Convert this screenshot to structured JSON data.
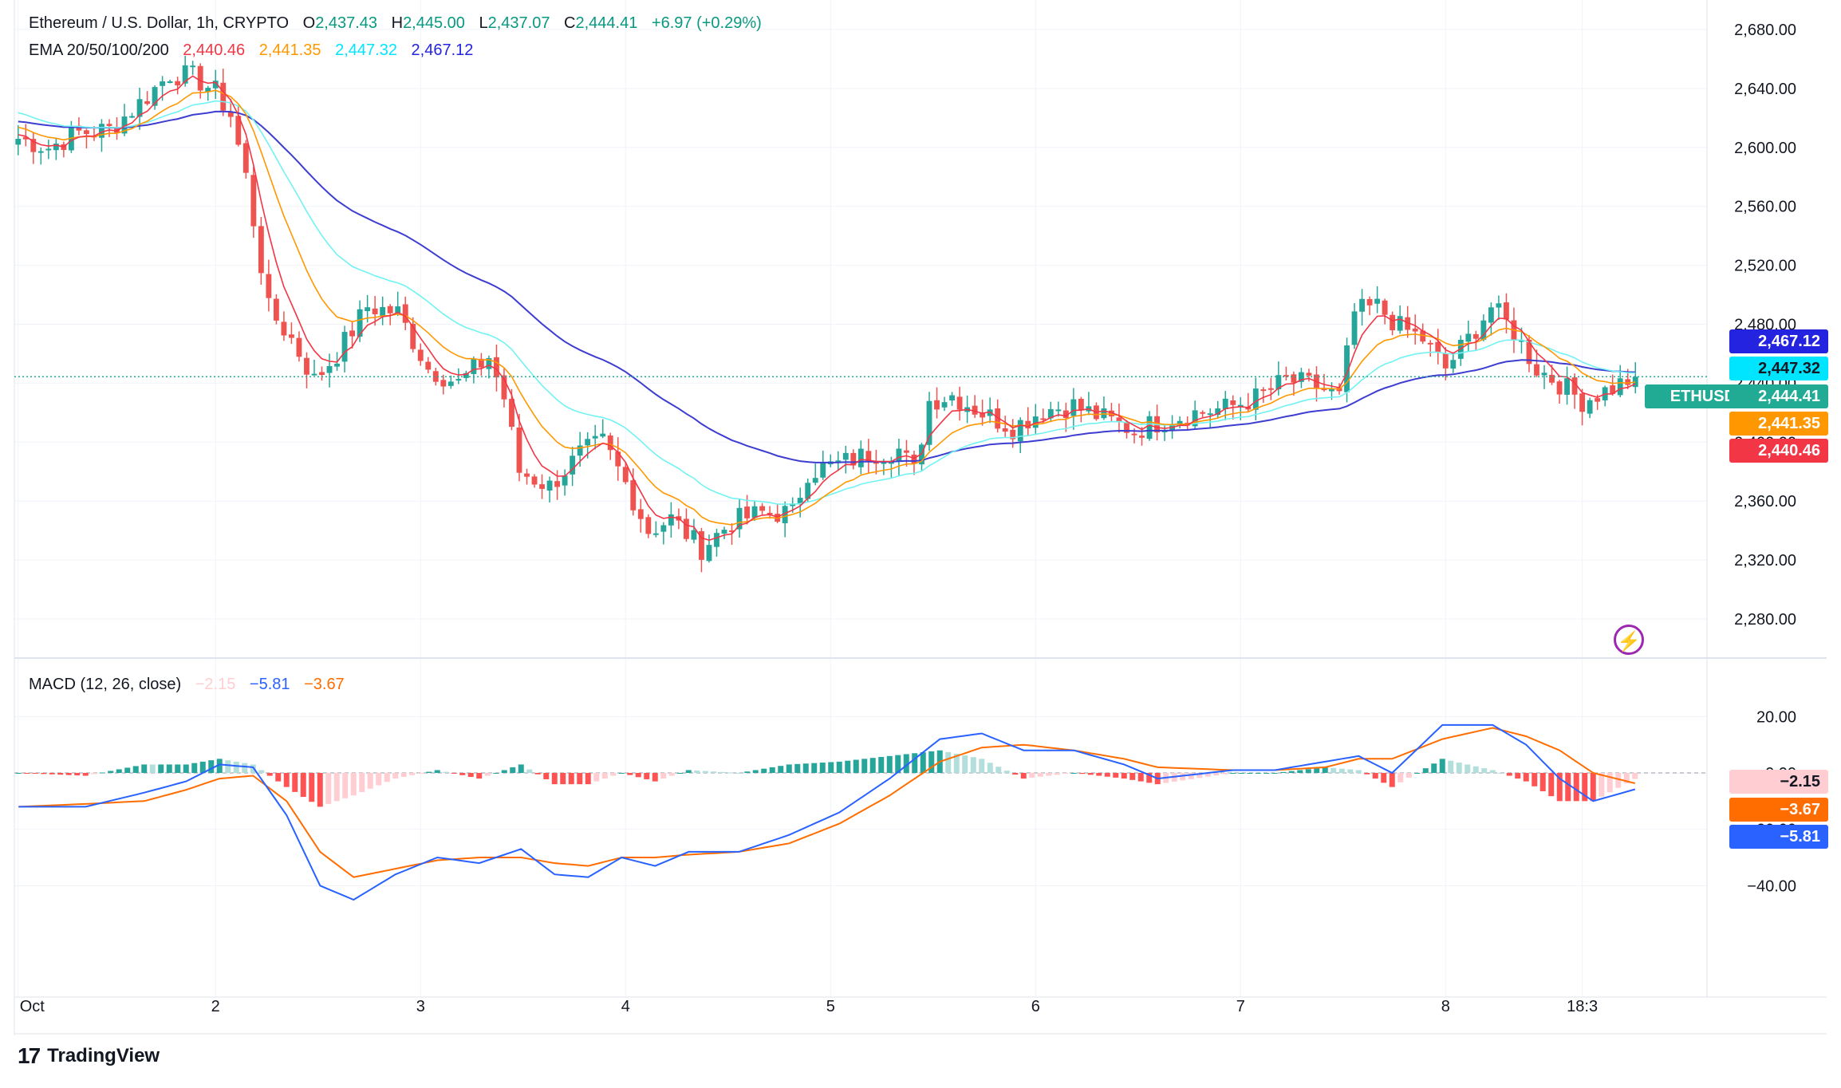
{
  "symbol": {
    "name": "Ethereum / U.S. Dollar, 1h, CRYPTO",
    "open_label": "O",
    "open": "2,437.43",
    "high_label": "H",
    "high": "2,445.00",
    "low_label": "L",
    "low": "2,437.07",
    "close_label": "C",
    "close": "2,444.41",
    "change": "+6.97 (+0.29%)"
  },
  "ema_legend": {
    "label": "EMA 20/50/100/200",
    "v20": "2,440.46",
    "v50": "2,441.35",
    "v100": "2,447.32",
    "v200": "2,467.12"
  },
  "macd_legend": {
    "label": "MACD (12, 26, close)",
    "hist": "−2.15",
    "macd": "−5.81",
    "signal": "−3.67"
  },
  "badges": {
    "ema200": "2,467.12",
    "ema100": "2,447.32",
    "ethusd_label": "ETHUSD",
    "price": "2,444.41",
    "ema50": "2,441.35",
    "ema20": "2,440.46",
    "macd_hist": "−2.15",
    "macd_signal": "−3.67",
    "macd_line": "−5.81"
  },
  "price_axis": [
    "2,680.00",
    "2,640.00",
    "2,600.00",
    "2,560.00",
    "2,520.00",
    "2,480.00",
    "2,440.00",
    "2,400.00",
    "2,360.00",
    "2,320.00",
    "2,280.00"
  ],
  "macd_axis": [
    "20.00",
    "0.00",
    "−20.00",
    "−40.00"
  ],
  "time_axis": [
    "Oct",
    "2",
    "3",
    "4",
    "5",
    "6",
    "7",
    "8",
    "18:3"
  ],
  "brand": "TradingView",
  "colors": {
    "up": "#26a69a",
    "down": "#ef5350",
    "ema20": "#f23645",
    "ema50": "#ff9800",
    "ema100": "#72f2f2",
    "ema200": "#3d3dd1",
    "macd_line": "#2962ff",
    "macd_signal": "#ff6d00",
    "hist_up_strong": "#26a69a",
    "hist_up_weak": "#b2dfdb",
    "hist_down_strong": "#ff5252",
    "hist_down_weak": "#ffcdd2",
    "badge_price": "#22ab94",
    "badge_ema200": "#2424e0",
    "badge_ema100": "#00e5ff",
    "badge_ema50": "#ff9800",
    "badge_ema20": "#f23645",
    "badge_macd": "#2962ff"
  },
  "chart_data": [
    {
      "type": "candlestick",
      "title": "Ethereum / U.S. Dollar, 1h, CRYPTO",
      "interval": "1h",
      "ylim": [
        2280,
        2700
      ],
      "y_ticks": [
        2680,
        2640,
        2600,
        2560,
        2520,
        2480,
        2440,
        2400,
        2360,
        2320,
        2280
      ],
      "x_labels": [
        "Oct",
        "2",
        "3",
        "4",
        "5",
        "6",
        "7",
        "8",
        "18:3"
      ],
      "grid": true,
      "last_price": 2444.41,
      "price_anchors": [
        [
          0,
          2606
        ],
        [
          4,
          2600
        ],
        [
          8,
          2610
        ],
        [
          12,
          2612
        ],
        [
          16,
          2630
        ],
        [
          20,
          2650
        ],
        [
          23,
          2648
        ],
        [
          26,
          2638
        ],
        [
          28,
          2622
        ],
        [
          30,
          2580
        ],
        [
          33,
          2490
        ],
        [
          36,
          2470
        ],
        [
          39,
          2442
        ],
        [
          42,
          2460
        ],
        [
          46,
          2492
        ],
        [
          50,
          2488
        ],
        [
          54,
          2450
        ],
        [
          58,
          2440
        ],
        [
          62,
          2458
        ],
        [
          64,
          2430
        ],
        [
          66,
          2380
        ],
        [
          70,
          2370
        ],
        [
          74,
          2392
        ],
        [
          77,
          2400
        ],
        [
          80,
          2372
        ],
        [
          83,
          2340
        ],
        [
          86,
          2348
        ],
        [
          90,
          2328
        ],
        [
          94,
          2346
        ],
        [
          98,
          2352
        ],
        [
          102,
          2352
        ],
        [
          104,
          2380
        ],
        [
          108,
          2385
        ],
        [
          112,
          2392
        ],
        [
          116,
          2395
        ],
        [
          118,
          2380
        ],
        [
          120,
          2428
        ],
        [
          123,
          2432
        ],
        [
          127,
          2420
        ],
        [
          131,
          2410
        ],
        [
          135,
          2422
        ],
        [
          139,
          2425
        ],
        [
          143,
          2416
        ],
        [
          147,
          2408
        ],
        [
          151,
          2415
        ],
        [
          155,
          2420
        ],
        [
          159,
          2423
        ],
        [
          163,
          2430
        ],
        [
          167,
          2442
        ],
        [
          171,
          2438
        ],
        [
          174,
          2430
        ],
        [
          176,
          2488
        ],
        [
          179,
          2492
        ],
        [
          182,
          2478
        ],
        [
          185,
          2470
        ],
        [
          188,
          2450
        ],
        [
          191,
          2470
        ],
        [
          194,
          2492
        ],
        [
          197,
          2475
        ],
        [
          200,
          2450
        ],
        [
          203,
          2440
        ],
        [
          206,
          2428
        ],
        [
          210,
          2437
        ],
        [
          213,
          2444.41
        ]
      ],
      "series": [
        {
          "name": "EMA 20",
          "last": 2440.46
        },
        {
          "name": "EMA 50",
          "last": 2441.35
        },
        {
          "name": "EMA 100",
          "last": 2447.32
        },
        {
          "name": "EMA 200",
          "last": 2467.12
        }
      ]
    },
    {
      "type": "line",
      "title": "MACD (12, 26, close)",
      "ylim": [
        -50,
        25
      ],
      "y_ticks": [
        20,
        0,
        -20,
        -40
      ],
      "macd_anchors": [
        [
          0,
          -12
        ],
        [
          8,
          -12
        ],
        [
          15,
          -7
        ],
        [
          20,
          -3
        ],
        [
          24,
          3
        ],
        [
          28,
          2
        ],
        [
          32,
          -15
        ],
        [
          36,
          -40
        ],
        [
          40,
          -45
        ],
        [
          45,
          -36
        ],
        [
          50,
          -30
        ],
        [
          55,
          -32
        ],
        [
          60,
          -27
        ],
        [
          64,
          -36
        ],
        [
          68,
          -37
        ],
        [
          72,
          -30
        ],
        [
          76,
          -33
        ],
        [
          80,
          -28
        ],
        [
          86,
          -28
        ],
        [
          92,
          -22
        ],
        [
          98,
          -14
        ],
        [
          104,
          -2
        ],
        [
          110,
          12
        ],
        [
          115,
          14
        ],
        [
          120,
          8
        ],
        [
          126,
          8
        ],
        [
          132,
          3
        ],
        [
          136,
          -2
        ],
        [
          145,
          1
        ],
        [
          150,
          1
        ],
        [
          156,
          4
        ],
        [
          160,
          6
        ],
        [
          164,
          0
        ],
        [
          170,
          17
        ],
        [
          176,
          17
        ],
        [
          180,
          10
        ],
        [
          184,
          -2
        ],
        [
          188,
          -10
        ],
        [
          193,
          -5.81
        ]
      ],
      "signal_anchors": [
        [
          0,
          -12
        ],
        [
          8,
          -11
        ],
        [
          15,
          -10
        ],
        [
          20,
          -6
        ],
        [
          24,
          -2
        ],
        [
          28,
          -1
        ],
        [
          32,
          -10
        ],
        [
          36,
          -28
        ],
        [
          40,
          -37
        ],
        [
          45,
          -34
        ],
        [
          50,
          -31
        ],
        [
          55,
          -30
        ],
        [
          60,
          -30
        ],
        [
          64,
          -32
        ],
        [
          68,
          -33
        ],
        [
          72,
          -30
        ],
        [
          76,
          -30
        ],
        [
          80,
          -29
        ],
        [
          86,
          -28
        ],
        [
          92,
          -25
        ],
        [
          98,
          -18
        ],
        [
          104,
          -8
        ],
        [
          110,
          4
        ],
        [
          115,
          9
        ],
        [
          120,
          10
        ],
        [
          126,
          8
        ],
        [
          132,
          5
        ],
        [
          136,
          2
        ],
        [
          145,
          1
        ],
        [
          150,
          1
        ],
        [
          156,
          2
        ],
        [
          160,
          5
        ],
        [
          164,
          5
        ],
        [
          170,
          12
        ],
        [
          176,
          16
        ],
        [
          180,
          13
        ],
        [
          184,
          8
        ],
        [
          188,
          0
        ],
        [
          193,
          -3.67
        ]
      ],
      "last_hist": -2.15,
      "last_macd": -5.81,
      "last_signal": -3.67
    }
  ]
}
